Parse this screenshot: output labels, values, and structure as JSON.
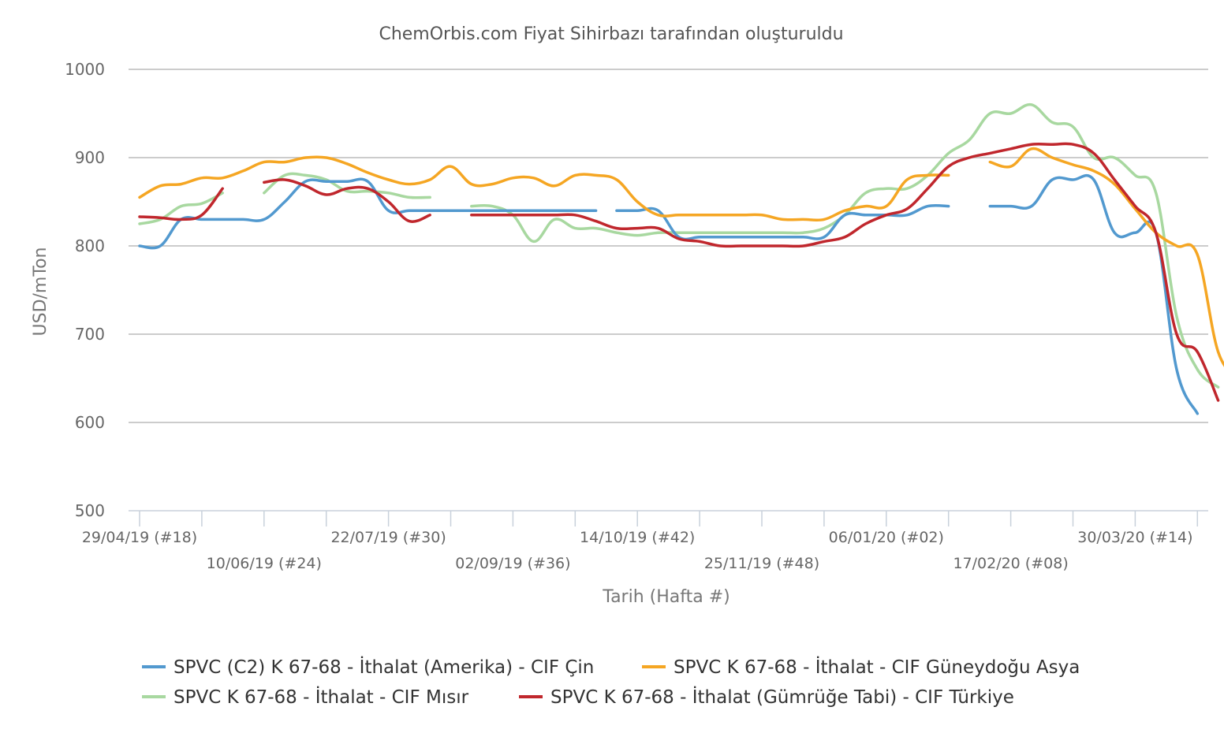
{
  "chart_data": {
    "type": "line",
    "title": "ChemOrbis.com Fiyat Sihirbazı tarafından oluşturuldu",
    "xlabel": "Tarih (Hafta #)",
    "ylabel": "USD/mTon",
    "ylim": [
      500,
      1000
    ],
    "yticks": [
      500,
      600,
      700,
      800,
      900,
      1000
    ],
    "x_week_range": [
      18,
      69
    ],
    "xticks": [
      {
        "week": 18,
        "label": "29/04/19 (#18)",
        "row": 0
      },
      {
        "week": 24,
        "label": "10/06/19 (#24)",
        "row": 1
      },
      {
        "week": 30,
        "label": "22/07/19 (#30)",
        "row": 0
      },
      {
        "week": 36,
        "label": "02/09/19 (#36)",
        "row": 1
      },
      {
        "week": 42,
        "label": "14/10/19 (#42)",
        "row": 0
      },
      {
        "week": 48,
        "label": "25/11/19 (#48)",
        "row": 1
      },
      {
        "week": 54,
        "label": "06/01/20 (#02)",
        "row": 0
      },
      {
        "week": 60,
        "label": "17/02/20 (#08)",
        "row": 1
      },
      {
        "week": 66,
        "label": "30/03/20 (#14)",
        "row": 0
      }
    ],
    "legend_position": "bottom",
    "grid": true,
    "series": [
      {
        "name": "SPVC (C2) K 67-68 - İthalat (Amerika) - CIF Çin",
        "color": "#5299cf",
        "segments": [
          [
            [
              18,
              800
            ],
            [
              19,
              800
            ],
            [
              20,
              830
            ],
            [
              21,
              830
            ],
            [
              22,
              830
            ],
            [
              23,
              830
            ],
            [
              24,
              830
            ],
            [
              25,
              850
            ],
            [
              26,
              873
            ],
            [
              27,
              873
            ],
            [
              28,
              873
            ],
            [
              29,
              873
            ],
            [
              30,
              840
            ],
            [
              31,
              840
            ],
            [
              32,
              840
            ],
            [
              33,
              840
            ],
            [
              34,
              840
            ],
            [
              35,
              840
            ],
            [
              36,
              840
            ],
            [
              37,
              840
            ],
            [
              38,
              840
            ],
            [
              39,
              840
            ],
            [
              40,
              840
            ]
          ],
          [
            [
              41,
              840
            ],
            [
              42,
              840
            ],
            [
              43,
              840
            ],
            [
              44,
              810
            ],
            [
              45,
              810
            ],
            [
              46,
              810
            ],
            [
              47,
              810
            ],
            [
              48,
              810
            ],
            [
              49,
              810
            ],
            [
              50,
              810
            ],
            [
              51,
              810
            ],
            [
              52,
              835
            ],
            [
              53,
              835
            ],
            [
              54,
              835
            ],
            [
              55,
              835
            ],
            [
              56,
              845
            ],
            [
              57,
              845
            ]
          ],
          [
            [
              59,
              845
            ],
            [
              60,
              845
            ],
            [
              61,
              845
            ],
            [
              62,
              875
            ],
            [
              63,
              875
            ],
            [
              64,
              875
            ],
            [
              65,
              815
            ],
            [
              66,
              815
            ],
            [
              67,
              815
            ],
            [
              68,
              660
            ],
            [
              69,
              610
            ]
          ]
        ]
      },
      {
        "name": "SPVC K 67-68 - İthalat - CIF Güneydoğu Asya",
        "color": "#f5a623",
        "segments": [
          [
            [
              18,
              855
            ],
            [
              19,
              868
            ],
            [
              20,
              870
            ],
            [
              21,
              877
            ],
            [
              22,
              877
            ],
            [
              23,
              885
            ],
            [
              24,
              895
            ],
            [
              25,
              895
            ],
            [
              26,
              900
            ],
            [
              27,
              900
            ],
            [
              28,
              893
            ],
            [
              29,
              883
            ],
            [
              30,
              875
            ],
            [
              31,
              870
            ],
            [
              32,
              875
            ],
            [
              33,
              890
            ],
            [
              34,
              870
            ],
            [
              35,
              870
            ],
            [
              36,
              877
            ],
            [
              37,
              877
            ],
            [
              38,
              868
            ],
            [
              39,
              880
            ],
            [
              40,
              880
            ],
            [
              41,
              875
            ],
            [
              42,
              850
            ],
            [
              43,
              835
            ],
            [
              44,
              835
            ],
            [
              45,
              835
            ],
            [
              46,
              835
            ],
            [
              47,
              835
            ],
            [
              48,
              835
            ],
            [
              49,
              830
            ],
            [
              50,
              830
            ],
            [
              51,
              830
            ],
            [
              52,
              840
            ],
            [
              53,
              845
            ],
            [
              54,
              845
            ],
            [
              55,
              875
            ],
            [
              56,
              880
            ],
            [
              57,
              880
            ]
          ],
          [
            [
              59,
              895
            ],
            [
              60,
              890
            ],
            [
              61,
              910
            ],
            [
              62,
              900
            ],
            [
              63,
              892
            ],
            [
              64,
              885
            ],
            [
              65,
              870
            ],
            [
              66,
              842
            ],
            [
              67,
              815
            ],
            [
              68,
              800
            ],
            [
              69,
              790
            ],
            [
              70,
              680
            ],
            [
              71,
              650
            ]
          ]
        ]
      },
      {
        "name": "SPVC K 67-68 - İthalat - CIF Mısır",
        "color": "#a8d8a0",
        "segments": [
          [
            [
              18,
              825
            ],
            [
              19,
              830
            ],
            [
              20,
              845
            ],
            [
              21,
              848
            ],
            [
              22,
              860
            ]
          ],
          [
            [
              24,
              860
            ],
            [
              25,
              880
            ],
            [
              26,
              880
            ],
            [
              27,
              875
            ],
            [
              28,
              862
            ],
            [
              29,
              862
            ],
            [
              30,
              860
            ],
            [
              31,
              855
            ],
            [
              32,
              855
            ]
          ],
          [
            [
              34,
              845
            ],
            [
              35,
              845
            ],
            [
              36,
              835
            ],
            [
              37,
              805
            ],
            [
              38,
              830
            ],
            [
              39,
              820
            ],
            [
              40,
              820
            ],
            [
              41,
              815
            ],
            [
              42,
              812
            ],
            [
              43,
              815
            ],
            [
              44,
              815
            ],
            [
              45,
              815
            ],
            [
              46,
              815
            ],
            [
              47,
              815
            ],
            [
              48,
              815
            ],
            [
              49,
              815
            ],
            [
              50,
              815
            ],
            [
              51,
              820
            ],
            [
              52,
              835
            ],
            [
              53,
              860
            ],
            [
              54,
              865
            ],
            [
              55,
              865
            ],
            [
              56,
              880
            ],
            [
              57,
              905
            ],
            [
              58,
              920
            ],
            [
              59,
              950
            ],
            [
              60,
              950
            ],
            [
              61,
              960
            ],
            [
              62,
              940
            ],
            [
              63,
              935
            ],
            [
              64,
              900
            ],
            [
              65,
              900
            ],
            [
              66,
              880
            ],
            [
              67,
              860
            ],
            [
              68,
              720
            ],
            [
              69,
              660
            ],
            [
              70,
              640
            ]
          ]
        ]
      },
      {
        "name": "SPVC K 67-68 - İthalat (Gümrüğe Tabi) - CIF Türkiye",
        "color": "#c0272d",
        "segments": [
          [
            [
              18,
              833
            ],
            [
              19,
              832
            ],
            [
              20,
              830
            ],
            [
              21,
              835
            ],
            [
              22,
              865
            ]
          ],
          [
            [
              24,
              872
            ],
            [
              25,
              875
            ],
            [
              26,
              868
            ],
            [
              27,
              858
            ],
            [
              28,
              865
            ],
            [
              29,
              865
            ],
            [
              30,
              850
            ],
            [
              31,
              828
            ],
            [
              32,
              835
            ]
          ],
          [
            [
              34,
              835
            ],
            [
              35,
              835
            ],
            [
              36,
              835
            ],
            [
              37,
              835
            ],
            [
              38,
              835
            ],
            [
              39,
              835
            ],
            [
              40,
              828
            ],
            [
              41,
              820
            ],
            [
              42,
              820
            ],
            [
              43,
              820
            ],
            [
              44,
              808
            ],
            [
              45,
              805
            ],
            [
              46,
              800
            ],
            [
              47,
              800
            ],
            [
              48,
              800
            ],
            [
              49,
              800
            ],
            [
              50,
              800
            ],
            [
              51,
              805
            ],
            [
              52,
              810
            ],
            [
              53,
              825
            ],
            [
              54,
              835
            ],
            [
              55,
              842
            ],
            [
              56,
              865
            ],
            [
              57,
              890
            ],
            [
              58,
              900
            ],
            [
              59,
              905
            ],
            [
              60,
              910
            ],
            [
              61,
              915
            ],
            [
              62,
              915
            ],
            [
              63,
              915
            ],
            [
              64,
              905
            ],
            [
              65,
              875
            ],
            [
              66,
              845
            ],
            [
              67,
              815
            ],
            [
              68,
              700
            ],
            [
              69,
              680
            ],
            [
              70,
              625
            ]
          ]
        ]
      }
    ]
  }
}
